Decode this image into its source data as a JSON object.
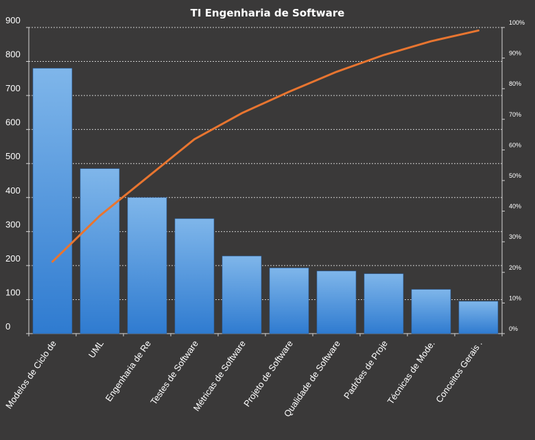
{
  "chart_data": {
    "type": "bar",
    "title": "TI Engenharia de Software",
    "categories": [
      "Modelos de Ciclo de",
      "UML",
      "Engenharia de Re",
      "Testes de Software",
      "Métricas de Software",
      "Projeto de Software",
      "Qualidade de Software",
      "Padrões de Proje",
      "Técnicas de Mode.",
      "Conceitos Gerais ."
    ],
    "series": [
      {
        "type": "bar",
        "values": [
          780,
          485,
          400,
          338,
          228,
          193,
          184,
          176,
          130,
          95
        ]
      },
      {
        "type": "line",
        "axis": "right",
        "values": [
          23.5,
          38.5,
          51,
          63.5,
          72,
          79,
          85.5,
          91,
          95.5,
          99
        ]
      }
    ],
    "ylim": [
      0,
      900
    ],
    "yticks": [
      0,
      100,
      200,
      300,
      400,
      500,
      600,
      700,
      800,
      900
    ],
    "y2lim": [
      0,
      100
    ],
    "y2ticks": [
      "0%",
      "10%",
      "20%",
      "30%",
      "40%",
      "50%",
      "60%",
      "70%",
      "80%",
      "90%",
      "100%"
    ],
    "grid": true,
    "legend": "none",
    "colors": {
      "bar": "#5aa2e6",
      "bar_light": "#7fb6ea",
      "bar_dark": "#2f7bd0",
      "line": "#e87530",
      "background": "#3a3939",
      "grid": "#cfcfcf"
    }
  }
}
